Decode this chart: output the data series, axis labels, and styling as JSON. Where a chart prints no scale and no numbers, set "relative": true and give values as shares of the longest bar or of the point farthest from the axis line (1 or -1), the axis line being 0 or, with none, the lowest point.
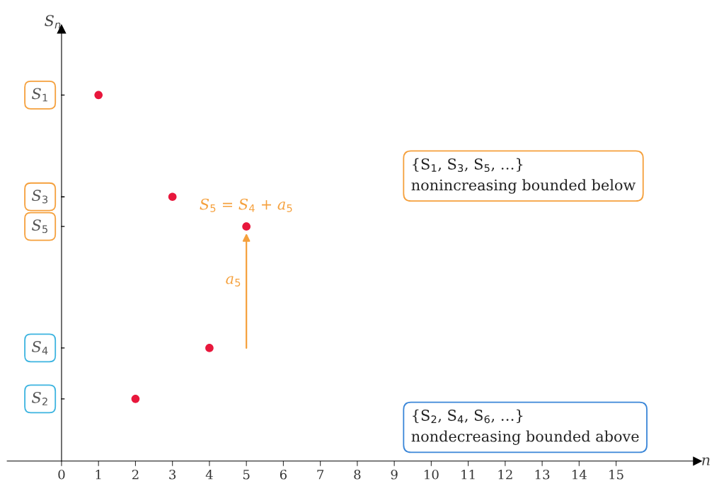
{
  "chart_data": {
    "type": "scatter",
    "relative": true,
    "xlabel": "n",
    "ylabel": "S$_{n}$",
    "x": [
      1,
      2,
      3,
      4,
      5
    ],
    "values": [
      1,
      0.17,
      0.722,
      0.309,
      0.641
    ],
    "color": "#e8173c",
    "marker": "circle",
    "xlim": [
      -1.47,
      17.2
    ],
    "xticks": [
      0,
      1,
      2,
      3,
      4,
      5,
      6,
      7,
      8,
      9,
      10,
      11,
      12,
      13,
      14,
      15
    ],
    "annotations": [
      {
        "text": "S$_{1}$",
        "y": 1
      },
      {
        "text": "S$_{3}$",
        "y": 0.722
      },
      {
        "text": "S$_{5}$",
        "y": 0.641
      },
      {
        "text": "S$_{4}$",
        "y": 0.309
      },
      {
        "text": "S$_{2}$",
        "y": 0.17
      },
      {
        "text": "S$_{5}$ = S$_{4}$ + a$_{5}$",
        "x": 5,
        "y": 0.641
      },
      "a$_{5}$",
      "{S$_{1}$, S$_{3}$, S$_{5}$, …}\nnonincreasing bounded below",
      "{S$_{2}$, S$_{4}$, S$_{6}$, …}\nnondecreasing bounded above"
    ]
  }
}
